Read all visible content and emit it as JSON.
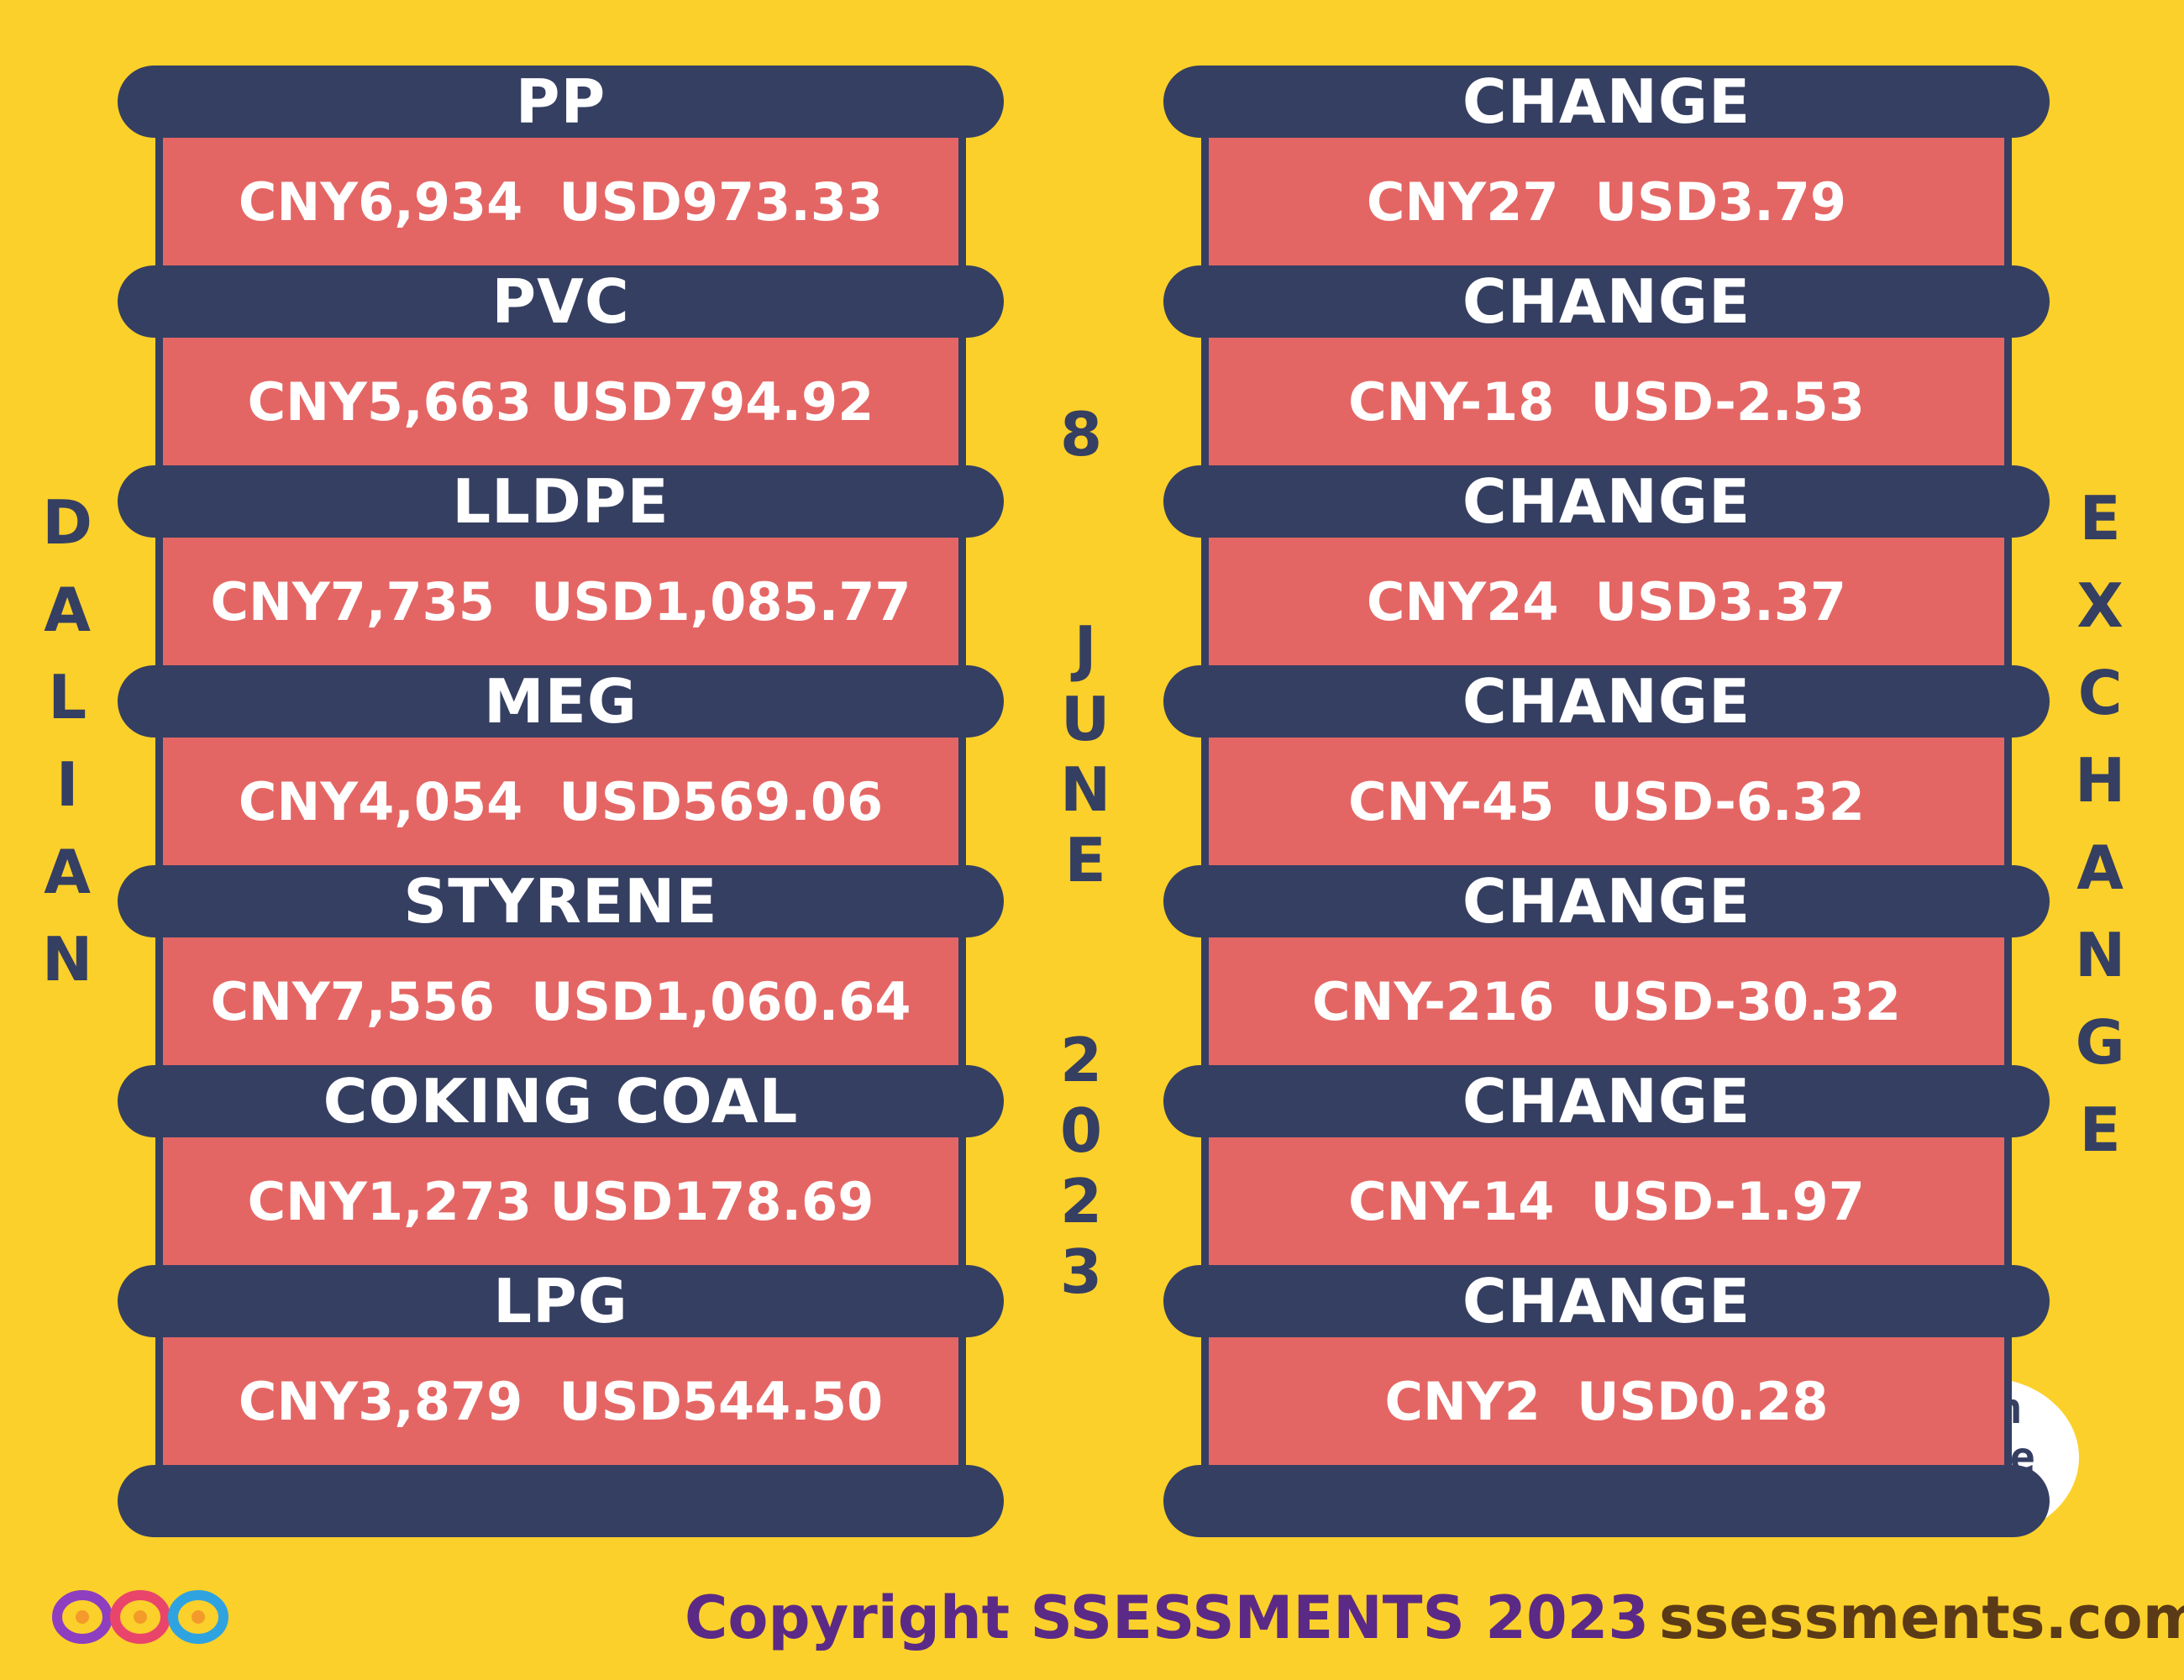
{
  "left_vertical": [
    "D",
    "A",
    "L",
    "I",
    "A",
    "N"
  ],
  "right_vertical": [
    "E",
    "X",
    "C",
    "H",
    "A",
    "N",
    "G",
    "E"
  ],
  "center_date": {
    "day": "8",
    "month": [
      "J",
      "U",
      "N",
      "E"
    ],
    "year": [
      "2",
      "0",
      "2",
      "3"
    ]
  },
  "left_items": [
    {
      "label": "PP",
      "value": "CNY6,934  USD973.33"
    },
    {
      "label": "PVC",
      "value": "CNY5,663 USD794.92"
    },
    {
      "label": "LLDPE",
      "value": "CNY7,735  USD1,085.77"
    },
    {
      "label": "MEG",
      "value": "CNY4,054  USD569.06"
    },
    {
      "label": "STYRENE",
      "value": "CNY7,556  USD1,060.64"
    },
    {
      "label": "COKING COAL",
      "value": "CNY1,273 USD178.69"
    },
    {
      "label": "LPG",
      "value": "CNY3,879  USD544.50"
    }
  ],
  "right_items": [
    {
      "label": "CHANGE",
      "value": "CNY27  USD3.79"
    },
    {
      "label": "CHANGE",
      "value": "CNY-18  USD-2.53"
    },
    {
      "label": "CHANGE",
      "value": "CNY24  USD3.37"
    },
    {
      "label": "CHANGE",
      "value": "CNY-45  USD-6.32"
    },
    {
      "label": "CHANGE",
      "value": "CNY-216  USD-30.32"
    },
    {
      "label": "CHANGE",
      "value": "CNY-14  USD-1.97"
    },
    {
      "label": "CHANGE",
      "value": "CNY2  USD0.28"
    }
  ],
  "date_badge": [
    "8th",
    "June",
    "2023"
  ],
  "footer": {
    "copyright": "Copyright SSESSMENTS 2023",
    "website": "ssessments.com"
  },
  "colors": {
    "background": "#fcd02a",
    "band": "#353f62",
    "box": "#e46664",
    "copyright": "#5b2a86"
  },
  "logo_icon": "ssessments-logo-icon"
}
